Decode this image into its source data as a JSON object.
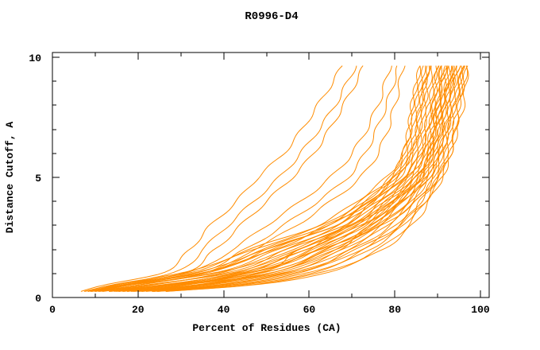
{
  "title": "R0996-D4",
  "axes": {
    "xlabel": "Percent of Residues (CA)",
    "ylabel": "Distance Cutoff, A",
    "x_major_ticks": [
      0,
      20,
      40,
      60,
      80,
      100
    ],
    "x_minor_ticks": [
      10,
      30,
      50,
      70,
      90
    ],
    "y_major_ticks": [
      0,
      5,
      10
    ],
    "y_minor_ticks": [
      1,
      2,
      3,
      4,
      6,
      7,
      8,
      9
    ]
  },
  "colors": {
    "line": "#ff8c00",
    "axis": "#000000",
    "background": "#ffffff"
  },
  "chart_data": {
    "type": "line",
    "title": "R0996-D4",
    "xlabel": "Percent of Residues (CA)",
    "ylabel": "Distance Cutoff, A",
    "xlim": [
      0,
      102
    ],
    "ylim": [
      0,
      10.2
    ],
    "grid": false,
    "legend": "none",
    "x_axis_note": "percent of CA residues under cutoff",
    "y_axis_note": "distance cutoff in Angstroms",
    "cutoffs": [
      0.25,
      0.5,
      1,
      2,
      3,
      4,
      5,
      6,
      8,
      9.7
    ],
    "series": [
      [
        7,
        13,
        30,
        46,
        62,
        71,
        78,
        82,
        84,
        86
      ],
      [
        8,
        14,
        31,
        47,
        63,
        72,
        79,
        82,
        84,
        86
      ],
      [
        9,
        16,
        33,
        49,
        64,
        73,
        79,
        82,
        85,
        87
      ],
      [
        10,
        17,
        34,
        50,
        65,
        73,
        80,
        83,
        85,
        87
      ],
      [
        10,
        19,
        36,
        51,
        66,
        74,
        80,
        83,
        86,
        88
      ],
      [
        11,
        20,
        37,
        53,
        67,
        75,
        81,
        84,
        86,
        88
      ],
      [
        12,
        22,
        39,
        54,
        68,
        75,
        81,
        84,
        87,
        88
      ],
      [
        13,
        23,
        40,
        55,
        69,
        76,
        82,
        85,
        87,
        89
      ],
      [
        14,
        25,
        42,
        57,
        70,
        77,
        83,
        85,
        88,
        90
      ],
      [
        15,
        26,
        43,
        58,
        71,
        78,
        83,
        86,
        88,
        90
      ],
      [
        16,
        27,
        44,
        59,
        71,
        78,
        84,
        86,
        89,
        90
      ],
      [
        17,
        29,
        46,
        61,
        73,
        79,
        84,
        87,
        89,
        91
      ],
      [
        17,
        30,
        47,
        62,
        73,
        80,
        85,
        87,
        90,
        91
      ],
      [
        18,
        32,
        49,
        64,
        75,
        81,
        85,
        88,
        90,
        92
      ],
      [
        19,
        33,
        50,
        65,
        75,
        81,
        86,
        88,
        91,
        92
      ],
      [
        20,
        34,
        51,
        66,
        76,
        82,
        86,
        89,
        91,
        93
      ],
      [
        21,
        36,
        53,
        68,
        77,
        83,
        87,
        89,
        92,
        94
      ],
      [
        22,
        37,
        54,
        69,
        78,
        84,
        88,
        90,
        92,
        94
      ],
      [
        23,
        39,
        56,
        70,
        79,
        84,
        88,
        90,
        93,
        94
      ],
      [
        24,
        40,
        57,
        72,
        80,
        85,
        89,
        91,
        93,
        95
      ],
      [
        24,
        42,
        59,
        73,
        81,
        86,
        89,
        91,
        94,
        96
      ],
      [
        25,
        43,
        60,
        74,
        82,
        86,
        90,
        92,
        94,
        96
      ],
      [
        26,
        45,
        62,
        76,
        83,
        87,
        90,
        92,
        95,
        97
      ],
      [
        27,
        46,
        63,
        77,
        84,
        88,
        91,
        93,
        95,
        97
      ],
      [
        8,
        15,
        35,
        50,
        66,
        74,
        80,
        84,
        86,
        88
      ],
      [
        11,
        18,
        34,
        52,
        64,
        75,
        82,
        86,
        89,
        91
      ],
      [
        13,
        24,
        44,
        60,
        68,
        76,
        83,
        87,
        90,
        92
      ],
      [
        15,
        28,
        47,
        58,
        70,
        80,
        86,
        88,
        91,
        93
      ],
      [
        9,
        17,
        38,
        56,
        69,
        78,
        85,
        89,
        92,
        95
      ],
      [
        19,
        31,
        45,
        63,
        76,
        83,
        88,
        91,
        93,
        95
      ],
      [
        21,
        33,
        52,
        67,
        74,
        82,
        87,
        90,
        94,
        96
      ],
      [
        16,
        29,
        48,
        64,
        74,
        81,
        87,
        90,
        92,
        93
      ],
      [
        12,
        21,
        41,
        59,
        72,
        80,
        86,
        88,
        90,
        92
      ],
      [
        23,
        38,
        55,
        71,
        81,
        87,
        91,
        93,
        96,
        97
      ],
      [
        18,
        30,
        50,
        66,
        77,
        85,
        90,
        93,
        95,
        96
      ],
      [
        14,
        26,
        46,
        62,
        72,
        79,
        85,
        88,
        91,
        94
      ],
      [
        7,
        12,
        25,
        32,
        37,
        43,
        48,
        54,
        62,
        68
      ],
      [
        8,
        14,
        28,
        35,
        41,
        47,
        53,
        58,
        66,
        71
      ],
      [
        9,
        16,
        30,
        38,
        44,
        50,
        56,
        61,
        68,
        73
      ],
      [
        9,
        15,
        31,
        42,
        50,
        58,
        65,
        70,
        76,
        79
      ],
      [
        10,
        17,
        33,
        45,
        54,
        62,
        69,
        73,
        78,
        81
      ],
      [
        11,
        19,
        35,
        47,
        57,
        65,
        72,
        76,
        80,
        82
      ]
    ]
  }
}
